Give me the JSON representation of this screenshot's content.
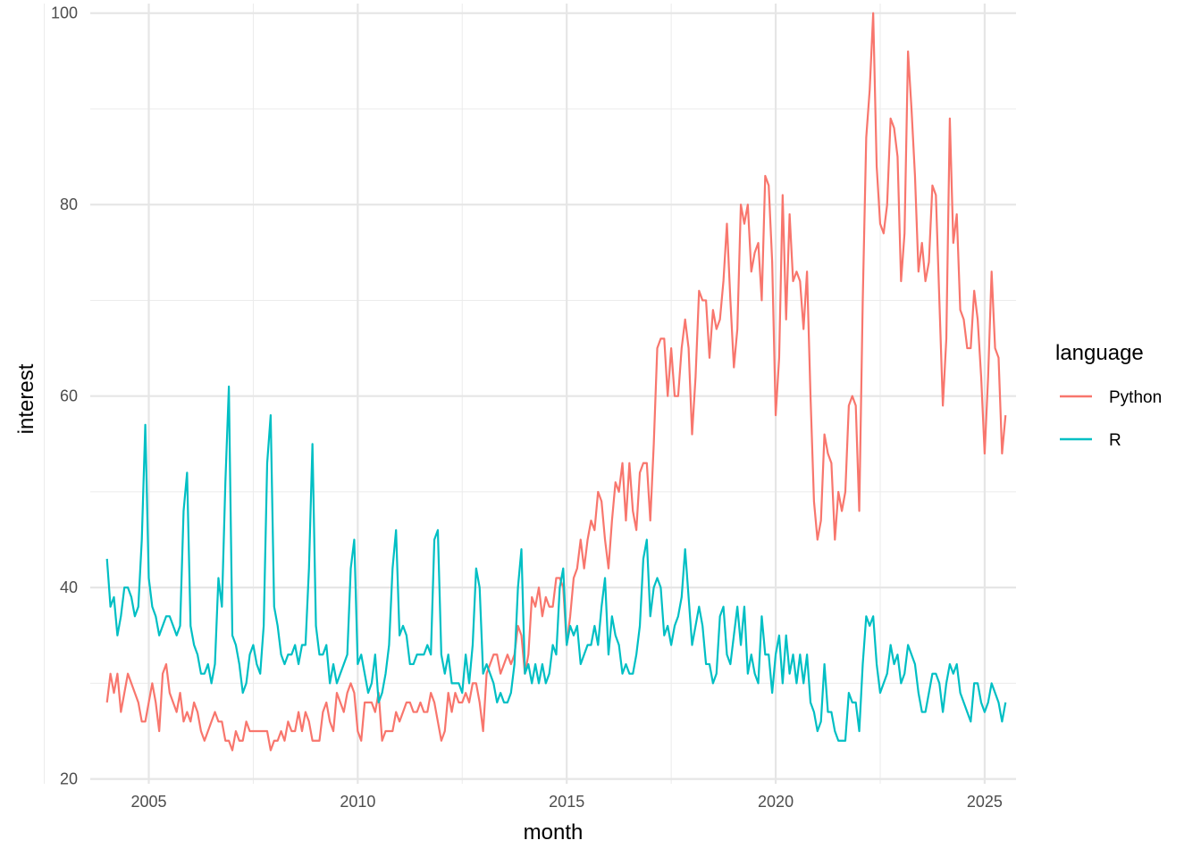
{
  "chart_data": {
    "type": "line",
    "xlabel": "month",
    "ylabel": "interest",
    "xlim": [
      2003.6,
      2025.75
    ],
    "ylim": [
      19.5,
      101
    ],
    "x_ticks": [
      2005,
      2010,
      2015,
      2020,
      2025
    ],
    "x_tick_labels": [
      "2005",
      "2010",
      "2015",
      "2020",
      "2025"
    ],
    "y_ticks": [
      20,
      40,
      60,
      80,
      100
    ],
    "y_tick_labels": [
      "20",
      "40",
      "60",
      "80",
      "100"
    ],
    "grid": true,
    "legend": {
      "title": "language",
      "position": "right"
    },
    "x_start": 2004.0,
    "x_step": 0.08333,
    "series": [
      {
        "name": "Python",
        "color": "#F8766D",
        "values": [
          28,
          31,
          29,
          31,
          27,
          29,
          31,
          30,
          29,
          28,
          26,
          26,
          28,
          30,
          28,
          25,
          31,
          32,
          29,
          28,
          27,
          29,
          26,
          27,
          26,
          28,
          27,
          25,
          24,
          25,
          26,
          27,
          26,
          26,
          24,
          24,
          23,
          25,
          24,
          24,
          26,
          25,
          25,
          25,
          25,
          25,
          25,
          23,
          24,
          24,
          25,
          24,
          26,
          25,
          25,
          27,
          25,
          27,
          26,
          24,
          24,
          24,
          27,
          28,
          26,
          25,
          29,
          28,
          27,
          29,
          30,
          29,
          25,
          24,
          28,
          28,
          28,
          27,
          29,
          24,
          25,
          25,
          25,
          27,
          26,
          27,
          28,
          28,
          27,
          27,
          28,
          27,
          27,
          29,
          28,
          26,
          24,
          25,
          29,
          27,
          29,
          28,
          28,
          29,
          28,
          30,
          30,
          28,
          25,
          31,
          32,
          33,
          33,
          31,
          32,
          33,
          32,
          33,
          36,
          35,
          31,
          33,
          39,
          38,
          40,
          37,
          39,
          38,
          38,
          41,
          41,
          40,
          34,
          37,
          41,
          42,
          45,
          42,
          45,
          47,
          46,
          50,
          49,
          45,
          42,
          47,
          51,
          50,
          53,
          47,
          53,
          48,
          46,
          52,
          53,
          53,
          47,
          55,
          65,
          66,
          66,
          60,
          65,
          60,
          60,
          65,
          68,
          65,
          56,
          62,
          71,
          70,
          70,
          64,
          69,
          67,
          68,
          72,
          78,
          70,
          63,
          67,
          80,
          78,
          80,
          73,
          75,
          76,
          70,
          83,
          82,
          74,
          58,
          64,
          81,
          68,
          79,
          72,
          73,
          72,
          67,
          73,
          60,
          49,
          45,
          47,
          56,
          54,
          53,
          45,
          50,
          48,
          50,
          59,
          60,
          59,
          48,
          70,
          87,
          92,
          100,
          84,
          78,
          77,
          80,
          89,
          88,
          85,
          72,
          77,
          96,
          90,
          83,
          73,
          76,
          72,
          74,
          82,
          81,
          70,
          59,
          66,
          89,
          76,
          79,
          69,
          68,
          65,
          65,
          71,
          68,
          62,
          54,
          62,
          73,
          65,
          64,
          54,
          58
        ]
      },
      {
        "name": "R",
        "color": "#00BFC4",
        "values": [
          43,
          38,
          39,
          35,
          37,
          40,
          40,
          39,
          37,
          38,
          45,
          57,
          41,
          38,
          37,
          35,
          36,
          37,
          37,
          36,
          35,
          36,
          48,
          52,
          36,
          34,
          33,
          31,
          31,
          32,
          30,
          32,
          41,
          38,
          51,
          61,
          35,
          34,
          32,
          29,
          30,
          33,
          34,
          32,
          31,
          36,
          53,
          58,
          38,
          36,
          33,
          32,
          33,
          33,
          34,
          32,
          34,
          34,
          42,
          55,
          36,
          33,
          33,
          34,
          30,
          32,
          30,
          31,
          32,
          33,
          42,
          45,
          32,
          33,
          31,
          29,
          30,
          33,
          28,
          29,
          31,
          34,
          42,
          46,
          35,
          36,
          35,
          32,
          32,
          33,
          33,
          33,
          34,
          33,
          45,
          46,
          33,
          31,
          33,
          30,
          30,
          30,
          29,
          33,
          30,
          34,
          42,
          40,
          31,
          32,
          31,
          30,
          28,
          29,
          28,
          28,
          29,
          32,
          40,
          44,
          31,
          32,
          30,
          32,
          30,
          32,
          30,
          31,
          34,
          33,
          40,
          42,
          34,
          36,
          35,
          36,
          32,
          33,
          34,
          34,
          36,
          34,
          38,
          41,
          33,
          37,
          35,
          34,
          31,
          32,
          31,
          31,
          33,
          36,
          43,
          45,
          37,
          40,
          41,
          40,
          35,
          36,
          34,
          36,
          37,
          39,
          44,
          39,
          34,
          36,
          38,
          36,
          32,
          32,
          30,
          31,
          37,
          38,
          33,
          32,
          35,
          38,
          34,
          38,
          31,
          33,
          31,
          30,
          37,
          33,
          33,
          29,
          33,
          35,
          30,
          35,
          31,
          33,
          30,
          33,
          30,
          33,
          28,
          27,
          25,
          26,
          32,
          27,
          27,
          25,
          24,
          24,
          24,
          29,
          28,
          28,
          25,
          32,
          37,
          36,
          37,
          32,
          29,
          30,
          31,
          34,
          32,
          33,
          30,
          31,
          34,
          33,
          32,
          29,
          27,
          27,
          29,
          31,
          31,
          30,
          27,
          30,
          32,
          31,
          32,
          29,
          28,
          27,
          26,
          30,
          30,
          28,
          27,
          28,
          30,
          29,
          28,
          26,
          28
        ]
      }
    ]
  }
}
